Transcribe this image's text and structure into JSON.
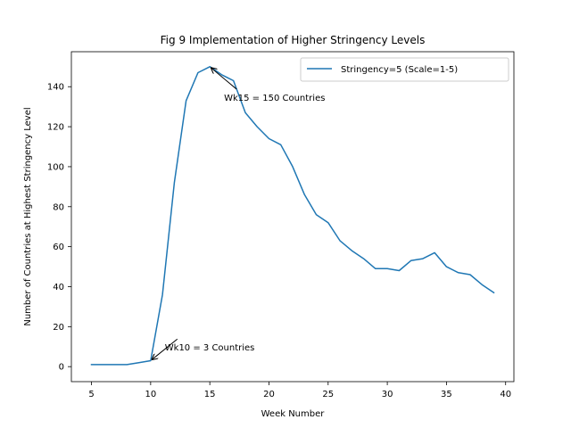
{
  "chart_data": {
    "type": "line",
    "title": "Fig 9 Implementation of Higher Stringency Levels",
    "xlabel": "Week Number",
    "ylabel": "Number of Countries at Highest Stringency Level",
    "xlim": [
      3.3,
      40.7
    ],
    "ylim": [
      -7.5,
      157.5
    ],
    "xticks": [
      5,
      10,
      15,
      20,
      25,
      30,
      35,
      40
    ],
    "yticks": [
      0,
      20,
      40,
      60,
      80,
      100,
      120,
      140
    ],
    "grid": false,
    "legend_position": "upper right",
    "series": [
      {
        "name": "Stringency=5 (Scale=1-5)",
        "color": "#1f77b4",
        "x": [
          5,
          6,
          7,
          8,
          9,
          10,
          11,
          12,
          13,
          14,
          15,
          16,
          17,
          18,
          19,
          20,
          21,
          22,
          23,
          24,
          25,
          26,
          27,
          28,
          29,
          30,
          31,
          32,
          33,
          34,
          35,
          36,
          37,
          38,
          39
        ],
        "y": [
          1,
          1,
          1,
          1,
          2,
          3,
          36,
          92,
          133,
          147,
          150,
          146,
          143,
          127,
          120,
          114,
          111,
          100,
          86,
          76,
          72,
          63,
          58,
          54,
          49,
          49,
          48,
          53,
          54,
          57,
          50,
          47,
          46,
          41,
          37
        ]
      }
    ],
    "annotations": [
      {
        "text": "Wk15 = 150 Countries",
        "x": 15,
        "y": 150,
        "text_x": 16.2,
        "text_y": 133
      },
      {
        "text": "Wk10 = 3 Countries",
        "x": 10,
        "y": 3,
        "text_x": 11.2,
        "text_y": 8
      }
    ]
  }
}
